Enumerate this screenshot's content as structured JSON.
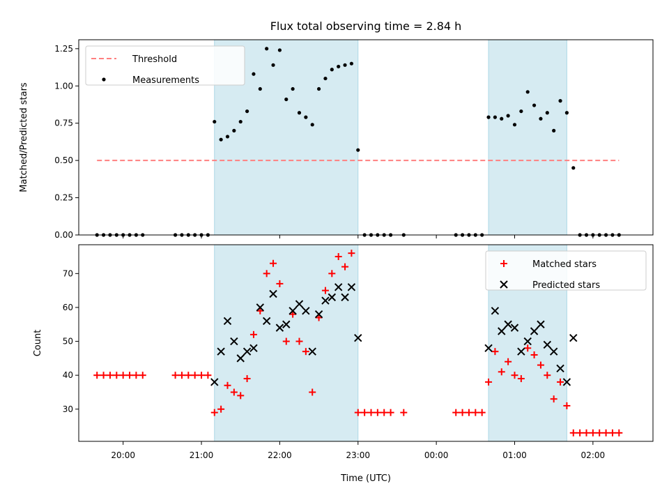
{
  "chart_data": [
    {
      "type": "scatter",
      "title": "Flux total observing time = 2.84 h",
      "xlabel": "",
      "ylabel": "Matched/Predicted stars",
      "ylim": [
        0,
        1.31
      ],
      "xlim": [
        "19:26",
        "02:46"
      ],
      "yticks": [
        "0.00",
        "0.25",
        "0.50",
        "0.75",
        "1.00",
        "1.25"
      ],
      "legend_position": "top-left",
      "shaded_intervals": [
        {
          "start": "21:10",
          "end": "23:00"
        },
        {
          "start": "00:40",
          "end": "01:40"
        }
      ],
      "series": [
        {
          "name": "Threshold",
          "style": "dashed-line",
          "color": "#ff7f7f",
          "points": [
            [
              "19:40",
              0.5
            ],
            [
              "02:20",
              0.5
            ]
          ]
        },
        {
          "name": "Measurements",
          "style": "dot",
          "color": "#000000",
          "points": [
            [
              "19:40",
              0.0
            ],
            [
              "19:45",
              0.0
            ],
            [
              "19:50",
              0.0
            ],
            [
              "19:55",
              0.0
            ],
            [
              "20:00",
              0.0
            ],
            [
              "20:05",
              0.0
            ],
            [
              "20:10",
              0.0
            ],
            [
              "20:15",
              0.0
            ],
            [
              "20:40",
              0.0
            ],
            [
              "20:45",
              0.0
            ],
            [
              "20:50",
              0.0
            ],
            [
              "20:55",
              0.0
            ],
            [
              "21:00",
              0.0
            ],
            [
              "21:05",
              0.0
            ],
            [
              "21:10",
              0.76
            ],
            [
              "21:15",
              0.64
            ],
            [
              "21:20",
              0.66
            ],
            [
              "21:25",
              0.7
            ],
            [
              "21:30",
              0.76
            ],
            [
              "21:35",
              0.83
            ],
            [
              "21:40",
              1.08
            ],
            [
              "21:45",
              0.98
            ],
            [
              "21:50",
              1.25
            ],
            [
              "21:55",
              1.14
            ],
            [
              "22:00",
              1.24
            ],
            [
              "22:05",
              0.91
            ],
            [
              "22:10",
              0.98
            ],
            [
              "22:15",
              0.82
            ],
            [
              "22:20",
              0.79
            ],
            [
              "22:25",
              0.74
            ],
            [
              "22:30",
              0.98
            ],
            [
              "22:35",
              1.05
            ],
            [
              "22:40",
              1.11
            ],
            [
              "22:45",
              1.13
            ],
            [
              "22:50",
              1.14
            ],
            [
              "22:55",
              1.15
            ],
            [
              "23:00",
              0.57
            ],
            [
              "23:05",
              0.0
            ],
            [
              "23:10",
              0.0
            ],
            [
              "23:15",
              0.0
            ],
            [
              "23:20",
              0.0
            ],
            [
              "23:25",
              0.0
            ],
            [
              "23:35",
              0.0
            ],
            [
              "00:15",
              0.0
            ],
            [
              "00:20",
              0.0
            ],
            [
              "00:25",
              0.0
            ],
            [
              "00:30",
              0.0
            ],
            [
              "00:35",
              0.0
            ],
            [
              "00:40",
              0.79
            ],
            [
              "00:45",
              0.79
            ],
            [
              "00:50",
              0.78
            ],
            [
              "00:55",
              0.8
            ],
            [
              "01:00",
              0.74
            ],
            [
              "01:05",
              0.83
            ],
            [
              "01:10",
              0.96
            ],
            [
              "01:15",
              0.87
            ],
            [
              "01:20",
              0.78
            ],
            [
              "01:25",
              0.82
            ],
            [
              "01:30",
              0.7
            ],
            [
              "01:35",
              0.9
            ],
            [
              "01:40",
              0.82
            ],
            [
              "01:45",
              0.45
            ],
            [
              "01:50",
              0.0
            ],
            [
              "01:55",
              0.0
            ],
            [
              "02:00",
              0.0
            ],
            [
              "02:05",
              0.0
            ],
            [
              "02:10",
              0.0
            ],
            [
              "02:15",
              0.0
            ],
            [
              "02:20",
              0.0
            ]
          ]
        }
      ]
    },
    {
      "type": "scatter",
      "title": "",
      "xlabel": "Time (UTC)",
      "ylabel": "Count",
      "ylim": [
        20.5,
        78.5
      ],
      "xlim": [
        "19:26",
        "02:46"
      ],
      "xticks": [
        "20:00",
        "21:00",
        "22:00",
        "23:00",
        "00:00",
        "01:00",
        "02:00"
      ],
      "yticks": [
        "30",
        "40",
        "50",
        "60",
        "70"
      ],
      "legend_position": "top-right",
      "shaded_intervals": [
        {
          "start": "21:10",
          "end": "23:00"
        },
        {
          "start": "00:40",
          "end": "01:40"
        }
      ],
      "series": [
        {
          "name": "Matched stars",
          "style": "plus",
          "color": "#ff0000",
          "points": [
            [
              "19:40",
              40
            ],
            [
              "19:45",
              40
            ],
            [
              "19:50",
              40
            ],
            [
              "19:55",
              40
            ],
            [
              "20:00",
              40
            ],
            [
              "20:05",
              40
            ],
            [
              "20:10",
              40
            ],
            [
              "20:15",
              40
            ],
            [
              "20:40",
              40
            ],
            [
              "20:45",
              40
            ],
            [
              "20:50",
              40
            ],
            [
              "20:55",
              40
            ],
            [
              "21:00",
              40
            ],
            [
              "21:05",
              40
            ],
            [
              "21:10",
              29
            ],
            [
              "21:15",
              30
            ],
            [
              "21:20",
              37
            ],
            [
              "21:25",
              35
            ],
            [
              "21:30",
              34
            ],
            [
              "21:35",
              39
            ],
            [
              "21:40",
              52
            ],
            [
              "21:45",
              59
            ],
            [
              "21:50",
              70
            ],
            [
              "21:55",
              73
            ],
            [
              "22:00",
              67
            ],
            [
              "22:05",
              50
            ],
            [
              "22:10",
              58
            ],
            [
              "22:15",
              50
            ],
            [
              "22:20",
              47
            ],
            [
              "22:25",
              35
            ],
            [
              "22:30",
              57
            ],
            [
              "22:35",
              65
            ],
            [
              "22:40",
              70
            ],
            [
              "22:45",
              75
            ],
            [
              "22:50",
              72
            ],
            [
              "22:55",
              76
            ],
            [
              "23:00",
              29
            ],
            [
              "23:05",
              29
            ],
            [
              "23:10",
              29
            ],
            [
              "23:15",
              29
            ],
            [
              "23:20",
              29
            ],
            [
              "23:25",
              29
            ],
            [
              "23:35",
              29
            ],
            [
              "00:15",
              29
            ],
            [
              "00:20",
              29
            ],
            [
              "00:25",
              29
            ],
            [
              "00:30",
              29
            ],
            [
              "00:35",
              29
            ],
            [
              "00:40",
              38
            ],
            [
              "00:45",
              47
            ],
            [
              "00:50",
              41
            ],
            [
              "00:55",
              44
            ],
            [
              "01:00",
              40
            ],
            [
              "01:05",
              39
            ],
            [
              "01:10",
              48
            ],
            [
              "01:15",
              46
            ],
            [
              "01:20",
              43
            ],
            [
              "01:25",
              40
            ],
            [
              "01:30",
              33
            ],
            [
              "01:35",
              38
            ],
            [
              "01:40",
              31
            ],
            [
              "01:45",
              23
            ],
            [
              "01:50",
              23
            ],
            [
              "01:55",
              23
            ],
            [
              "02:00",
              23
            ],
            [
              "02:05",
              23
            ],
            [
              "02:10",
              23
            ],
            [
              "02:15",
              23
            ],
            [
              "02:20",
              23
            ]
          ]
        },
        {
          "name": "Predicted stars",
          "style": "x",
          "color": "#000000",
          "points": [
            [
              "21:10",
              38
            ],
            [
              "21:15",
              47
            ],
            [
              "21:20",
              56
            ],
            [
              "21:25",
              50
            ],
            [
              "21:30",
              45
            ],
            [
              "21:35",
              47
            ],
            [
              "21:40",
              48
            ],
            [
              "21:45",
              60
            ],
            [
              "21:50",
              56
            ],
            [
              "21:55",
              64
            ],
            [
              "22:00",
              54
            ],
            [
              "22:05",
              55
            ],
            [
              "22:10",
              59
            ],
            [
              "22:15",
              61
            ],
            [
              "22:20",
              59
            ],
            [
              "22:25",
              47
            ],
            [
              "22:30",
              58
            ],
            [
              "22:35",
              62
            ],
            [
              "22:40",
              63
            ],
            [
              "22:45",
              66
            ],
            [
              "22:50",
              63
            ],
            [
              "22:55",
              66
            ],
            [
              "23:00",
              51
            ],
            [
              "00:40",
              48
            ],
            [
              "00:45",
              59
            ],
            [
              "00:50",
              53
            ],
            [
              "00:55",
              55
            ],
            [
              "01:00",
              54
            ],
            [
              "01:05",
              47
            ],
            [
              "01:10",
              50
            ],
            [
              "01:15",
              53
            ],
            [
              "01:20",
              55
            ],
            [
              "01:25",
              49
            ],
            [
              "01:30",
              47
            ],
            [
              "01:35",
              42
            ],
            [
              "01:40",
              38
            ],
            [
              "01:45",
              51
            ]
          ]
        }
      ]
    }
  ]
}
